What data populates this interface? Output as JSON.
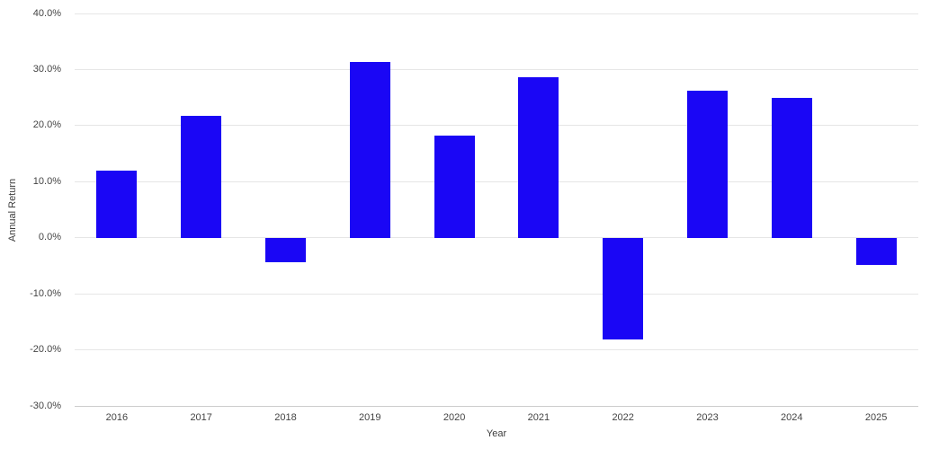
{
  "chart_data": {
    "type": "bar",
    "title": "",
    "categories": [
      "2016",
      "2017",
      "2018",
      "2019",
      "2020",
      "2021",
      "2022",
      "2023",
      "2024",
      "2025"
    ],
    "values": [
      12.0,
      21.8,
      -4.4,
      31.3,
      18.2,
      28.7,
      -18.1,
      26.2,
      25.0,
      -4.9
    ],
    "xlabel": "Year",
    "ylabel": "Annual Return",
    "ylim": [
      -30,
      40
    ],
    "ytick_step": 10,
    "ytick_labels": [
      "40.0%",
      "30.0%",
      "20.0%",
      "10.0%",
      "0.0%",
      "-10.0%",
      "-20.0%",
      "-30.0%"
    ],
    "grid": true,
    "legend": "none",
    "colors": {
      "bar": "#1a06f5",
      "gridline": "#e6e6e6",
      "baseline": "#cccccc",
      "tick_text": "#444444",
      "axis_title_text": "#3c3c3c",
      "background": "#ffffff"
    }
  }
}
